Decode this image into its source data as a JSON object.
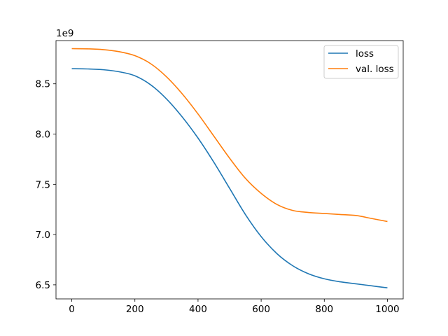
{
  "chart_data": {
    "type": "line",
    "offset_text": "1e9",
    "x_ticks": [
      0,
      200,
      400,
      600,
      800,
      1000
    ],
    "y_ticks": [
      6.5,
      7.0,
      7.5,
      8.0,
      8.5
    ],
    "xlim": [
      -50,
      1050
    ],
    "ylim": [
      6.36,
      8.93
    ],
    "grid": false,
    "legend_position": "top-right",
    "series": [
      {
        "name": "loss",
        "color": "#1f77b4",
        "x": [
          0,
          50,
          100,
          150,
          200,
          250,
          300,
          350,
          400,
          450,
          500,
          550,
          600,
          650,
          700,
          750,
          800,
          850,
          900,
          950,
          1000
        ],
        "y": [
          8.65,
          8.648,
          8.64,
          8.62,
          8.58,
          8.49,
          8.35,
          8.17,
          7.96,
          7.72,
          7.46,
          7.2,
          6.98,
          6.81,
          6.69,
          6.61,
          6.56,
          6.53,
          6.51,
          6.49,
          6.47
        ]
      },
      {
        "name": "val. loss",
        "color": "#ff7f0e",
        "x": [
          0,
          50,
          100,
          150,
          200,
          250,
          300,
          350,
          400,
          450,
          500,
          550,
          600,
          650,
          700,
          750,
          800,
          850,
          900,
          950,
          1000
        ],
        "y": [
          8.85,
          8.848,
          8.84,
          8.82,
          8.78,
          8.7,
          8.57,
          8.4,
          8.2,
          7.98,
          7.76,
          7.56,
          7.41,
          7.3,
          7.24,
          7.22,
          7.21,
          7.2,
          7.19,
          7.16,
          7.13
        ]
      }
    ]
  }
}
